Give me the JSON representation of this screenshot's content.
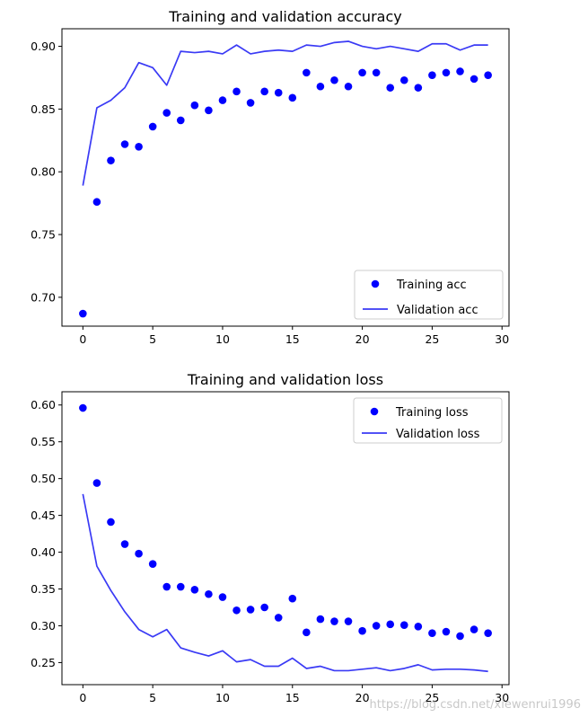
{
  "chart_data": [
    {
      "type": "scatter",
      "title": "Training and validation accuracy",
      "xlabel": "",
      "ylabel": "",
      "xlim": [
        -1.5,
        30.5
      ],
      "ylim": [
        0.677,
        0.914
      ],
      "xticks": [
        "0",
        "5",
        "10",
        "15",
        "20",
        "25",
        "30"
      ],
      "xtick_values": [
        0,
        5,
        10,
        15,
        20,
        25,
        30
      ],
      "yticks": [
        "0.70",
        "0.75",
        "0.80",
        "0.85",
        "0.90"
      ],
      "ytick_values": [
        0.7,
        0.75,
        0.8,
        0.85,
        0.9
      ],
      "legend_position": "lower-right",
      "grid": false,
      "series": [
        {
          "name": "Training acc",
          "style": "points",
          "color": "#0000ff",
          "x": [
            0,
            1,
            2,
            3,
            4,
            5,
            6,
            7,
            8,
            9,
            10,
            11,
            12,
            13,
            14,
            15,
            16,
            17,
            18,
            19,
            20,
            21,
            22,
            23,
            24,
            25,
            26,
            27,
            28,
            29
          ],
          "values": [
            0.687,
            0.776,
            0.809,
            0.822,
            0.82,
            0.836,
            0.847,
            0.841,
            0.853,
            0.849,
            0.857,
            0.864,
            0.855,
            0.864,
            0.863,
            0.859,
            0.879,
            0.868,
            0.873,
            0.868,
            0.879,
            0.879,
            0.867,
            0.873,
            0.867,
            0.877,
            0.879,
            0.88,
            0.874,
            0.877
          ]
        },
        {
          "name": "Validation acc",
          "style": "line",
          "color": "#3a3af5",
          "x": [
            0,
            1,
            2,
            3,
            4,
            5,
            6,
            7,
            8,
            9,
            10,
            11,
            12,
            13,
            14,
            15,
            16,
            17,
            18,
            19,
            20,
            21,
            22,
            23,
            24,
            25,
            26,
            27,
            28,
            29
          ],
          "values": [
            0.789,
            0.851,
            0.857,
            0.867,
            0.887,
            0.883,
            0.869,
            0.896,
            0.895,
            0.896,
            0.894,
            0.901,
            0.894,
            0.896,
            0.897,
            0.896,
            0.901,
            0.9,
            0.903,
            0.904,
            0.9,
            0.898,
            0.9,
            0.898,
            0.896,
            0.902,
            0.902,
            0.897,
            0.901,
            0.901
          ]
        }
      ]
    },
    {
      "type": "scatter",
      "title": "Training and validation loss",
      "xlabel": "",
      "ylabel": "",
      "xlim": [
        -1.5,
        30.5
      ],
      "ylim": [
        0.22,
        0.618
      ],
      "xticks": [
        "0",
        "5",
        "10",
        "15",
        "20",
        "25",
        "30"
      ],
      "xtick_values": [
        0,
        5,
        10,
        15,
        20,
        25,
        30
      ],
      "yticks": [
        "0.25",
        "0.30",
        "0.35",
        "0.40",
        "0.45",
        "0.50",
        "0.55",
        "0.60"
      ],
      "ytick_values": [
        0.25,
        0.3,
        0.35,
        0.4,
        0.45,
        0.5,
        0.55,
        0.6
      ],
      "legend_position": "upper-right",
      "grid": false,
      "series": [
        {
          "name": "Training loss",
          "style": "points",
          "color": "#0000ff",
          "x": [
            0,
            1,
            2,
            3,
            4,
            5,
            6,
            7,
            8,
            9,
            10,
            11,
            12,
            13,
            14,
            15,
            16,
            17,
            18,
            19,
            20,
            21,
            22,
            23,
            24,
            25,
            26,
            27,
            28,
            29
          ],
          "values": [
            0.596,
            0.494,
            0.441,
            0.411,
            0.398,
            0.384,
            0.353,
            0.353,
            0.349,
            0.343,
            0.339,
            0.321,
            0.322,
            0.325,
            0.311,
            0.337,
            0.291,
            0.309,
            0.306,
            0.306,
            0.293,
            0.3,
            0.302,
            0.301,
            0.299,
            0.29,
            0.292,
            0.286,
            0.295,
            0.29
          ]
        },
        {
          "name": "Validation loss",
          "style": "line",
          "color": "#3a3af5",
          "x": [
            0,
            1,
            2,
            3,
            4,
            5,
            6,
            7,
            8,
            9,
            10,
            11,
            12,
            13,
            14,
            15,
            16,
            17,
            18,
            19,
            20,
            21,
            22,
            23,
            24,
            25,
            26,
            27,
            28,
            29
          ],
          "values": [
            0.479,
            0.381,
            0.348,
            0.319,
            0.295,
            0.285,
            0.295,
            0.27,
            0.264,
            0.259,
            0.266,
            0.251,
            0.254,
            0.245,
            0.245,
            0.256,
            0.242,
            0.245,
            0.239,
            0.239,
            0.241,
            0.243,
            0.239,
            0.242,
            0.247,
            0.24,
            0.241,
            0.241,
            0.24,
            0.238
          ]
        }
      ]
    }
  ],
  "watermark": "https://blog.csdn.net/xiewenrui1996"
}
